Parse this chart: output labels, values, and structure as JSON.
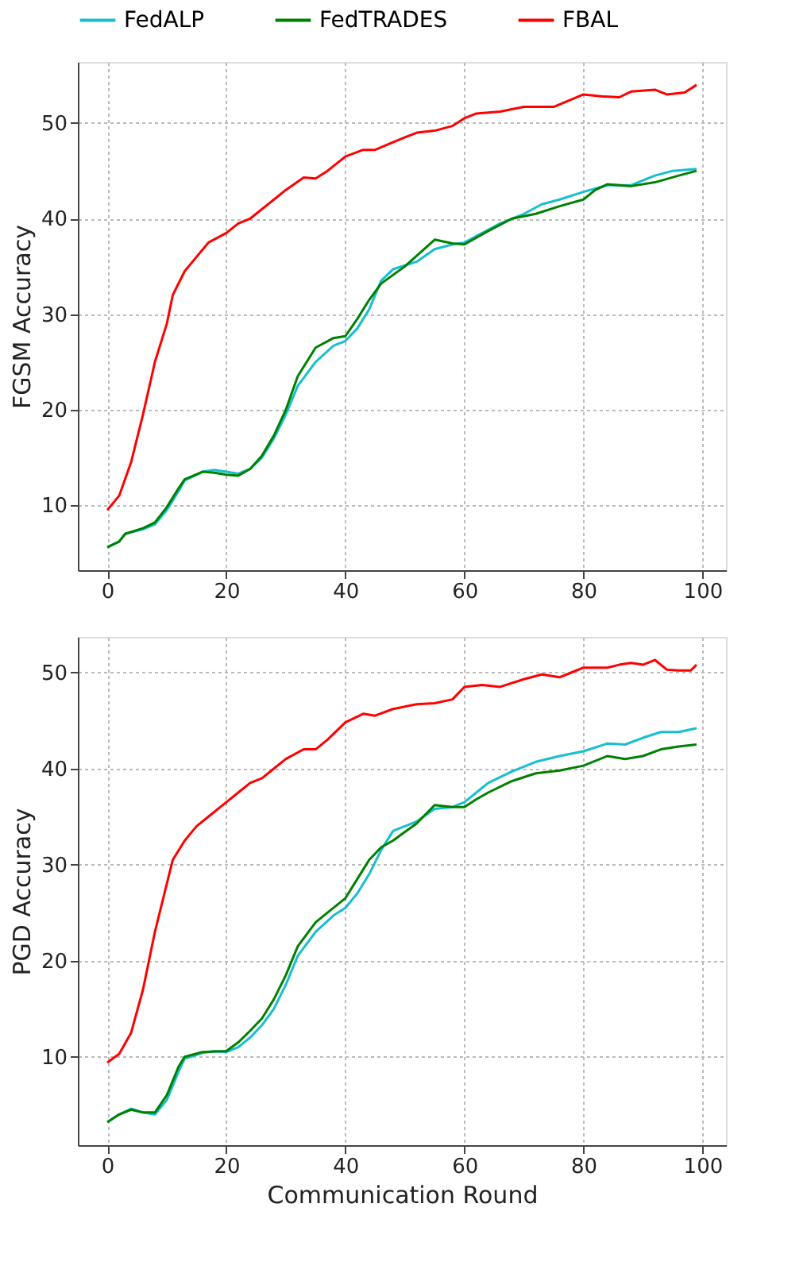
{
  "chart_data": [
    {
      "type": "line",
      "ylabel": "FGSM Accuracy",
      "xlim": [
        -4.95,
        103.95
      ],
      "ylim": [
        3.2,
        56.4
      ],
      "xticks": [
        0,
        20,
        40,
        60,
        80,
        100
      ],
      "yticks": [
        10,
        20,
        30,
        40,
        50
      ],
      "grid": true,
      "legend": "top",
      "marker": "none",
      "line_style": "solid",
      "series": [
        {
          "name": "FedALP",
          "color": "#17becf",
          "x": [
            0,
            2,
            3,
            6,
            8,
            10,
            12,
            13,
            16,
            18,
            20,
            22,
            24,
            26,
            28,
            30,
            32,
            35,
            38,
            40,
            42,
            44,
            46,
            48,
            52,
            55,
            58,
            60,
            63,
            66,
            70,
            73,
            76,
            80,
            84,
            88,
            92,
            95,
            99
          ],
          "values": [
            5.6,
            6.2,
            7,
            7.5,
            8,
            9.5,
            11.5,
            12.6,
            13.5,
            13.7,
            13.5,
            13.3,
            13.8,
            15,
            17,
            19.5,
            22.5,
            25,
            26.7,
            27.2,
            28.5,
            30.5,
            33.5,
            34.7,
            35.5,
            36.8,
            37.3,
            37.5,
            38.5,
            39.5,
            40.5,
            41.5,
            42,
            42.8,
            43.5,
            43.5,
            44.5,
            45,
            45.2
          ]
        },
        {
          "name": "FedTRADES",
          "color": "#008000",
          "x": [
            0,
            2,
            3,
            6,
            8,
            10,
            12,
            13,
            16,
            18,
            20,
            22,
            24,
            26,
            28,
            30,
            32,
            35,
            38,
            40,
            42,
            44,
            46,
            50,
            55,
            58,
            60,
            64,
            68,
            72,
            76,
            80,
            82,
            84,
            88,
            92,
            96,
            99
          ],
          "values": [
            5.6,
            6.2,
            7,
            7.6,
            8.2,
            9.8,
            11.8,
            12.7,
            13.5,
            13.4,
            13.2,
            13.1,
            13.8,
            15.2,
            17.3,
            20,
            23.5,
            26.5,
            27.5,
            27.7,
            29.5,
            31.5,
            33.2,
            35,
            37.8,
            37.4,
            37.3,
            38.7,
            40,
            40.5,
            41.3,
            42,
            43,
            43.6,
            43.4,
            43.8,
            44.5,
            45
          ]
        },
        {
          "name": "FBAL",
          "color": "#ff0000",
          "x": [
            0,
            2,
            4,
            6,
            8,
            10,
            11,
            13,
            15,
            17,
            20,
            22,
            24,
            26,
            28,
            30,
            33,
            35,
            37,
            40,
            43,
            45,
            48,
            52,
            55,
            58,
            60,
            62,
            66,
            70,
            75,
            80,
            83,
            86,
            88,
            92,
            94,
            97,
            99
          ],
          "values": [
            9.5,
            11,
            14.5,
            19.5,
            25,
            29,
            32,
            34.5,
            36,
            37.5,
            38.5,
            39.5,
            40,
            41,
            42,
            43,
            44.3,
            44.2,
            45,
            46.5,
            47.2,
            47.2,
            48,
            49,
            49.2,
            49.7,
            50.5,
            51,
            51.2,
            51.7,
            51.7,
            53,
            52.8,
            52.7,
            53.3,
            53.5,
            53,
            53.2,
            54
          ]
        }
      ]
    },
    {
      "type": "line",
      "xlabel": "Communication Round",
      "ylabel": "PGD Accuracy",
      "xlim": [
        -4.95,
        103.95
      ],
      "ylim": [
        0.8,
        53.7
      ],
      "xticks": [
        0,
        20,
        40,
        60,
        80,
        100
      ],
      "yticks": [
        10,
        20,
        30,
        40,
        50
      ],
      "grid": true,
      "legend": "top",
      "marker": "none",
      "line_style": "solid",
      "series": [
        {
          "name": "FedALP",
          "color": "#17becf",
          "x": [
            0,
            2,
            4,
            6,
            8,
            10,
            12,
            13,
            16,
            18,
            20,
            22,
            24,
            26,
            28,
            30,
            32,
            35,
            38,
            40,
            42,
            44,
            46,
            48,
            52,
            55,
            58,
            60,
            62,
            64,
            68,
            72,
            76,
            80,
            84,
            87,
            90,
            93,
            96,
            99
          ],
          "values": [
            3.2,
            4,
            4.6,
            4.2,
            4,
            5.5,
            8.5,
            9.8,
            10.4,
            10.6,
            10.5,
            11,
            12,
            13.3,
            15,
            17.5,
            20.5,
            23,
            24.7,
            25.5,
            27,
            29,
            31.5,
            33.5,
            34.5,
            35.8,
            36,
            36.5,
            37.5,
            38.5,
            39.7,
            40.7,
            41.3,
            41.8,
            42.6,
            42.5,
            43.2,
            43.8,
            43.8,
            44.2
          ]
        },
        {
          "name": "FedTRADES",
          "color": "#008000",
          "x": [
            0,
            2,
            4,
            6,
            8,
            10,
            12,
            13,
            16,
            20,
            22,
            24,
            26,
            28,
            30,
            32,
            35,
            38,
            40,
            42,
            44,
            46,
            48,
            52,
            55,
            58,
            60,
            62,
            64,
            68,
            72,
            76,
            80,
            84,
            87,
            90,
            93,
            96,
            99
          ],
          "values": [
            3.2,
            4,
            4.5,
            4.2,
            4.2,
            6,
            9,
            10,
            10.5,
            10.6,
            11.5,
            12.7,
            14,
            16,
            18.5,
            21.5,
            24,
            25.5,
            26.5,
            28.5,
            30.5,
            31.8,
            32.5,
            34.3,
            36.2,
            36,
            36,
            36.8,
            37.5,
            38.7,
            39.5,
            39.8,
            40.3,
            41.3,
            41,
            41.3,
            42,
            42.3,
            42.5
          ]
        },
        {
          "name": "FBAL",
          "color": "#ff0000",
          "x": [
            0,
            2,
            4,
            6,
            8,
            10,
            11,
            13,
            15,
            17,
            20,
            22,
            24,
            26,
            28,
            30,
            33,
            35,
            37,
            40,
            43,
            45,
            48,
            52,
            55,
            58,
            60,
            63,
            66,
            70,
            73,
            76,
            78,
            80,
            84,
            86,
            88,
            90,
            92,
            94,
            96,
            98,
            99
          ],
          "values": [
            9.4,
            10.3,
            12.5,
            17,
            23,
            28,
            30.5,
            32.5,
            34,
            35,
            36.5,
            37.5,
            38.5,
            39,
            40,
            41,
            42,
            42,
            43,
            44.8,
            45.7,
            45.5,
            46.2,
            46.7,
            46.8,
            47.2,
            48.5,
            48.7,
            48.5,
            49.3,
            49.8,
            49.5,
            50,
            50.5,
            50.5,
            50.8,
            51,
            50.8,
            51.3,
            50.3,
            50.2,
            50.2,
            50.8
          ]
        }
      ]
    }
  ]
}
